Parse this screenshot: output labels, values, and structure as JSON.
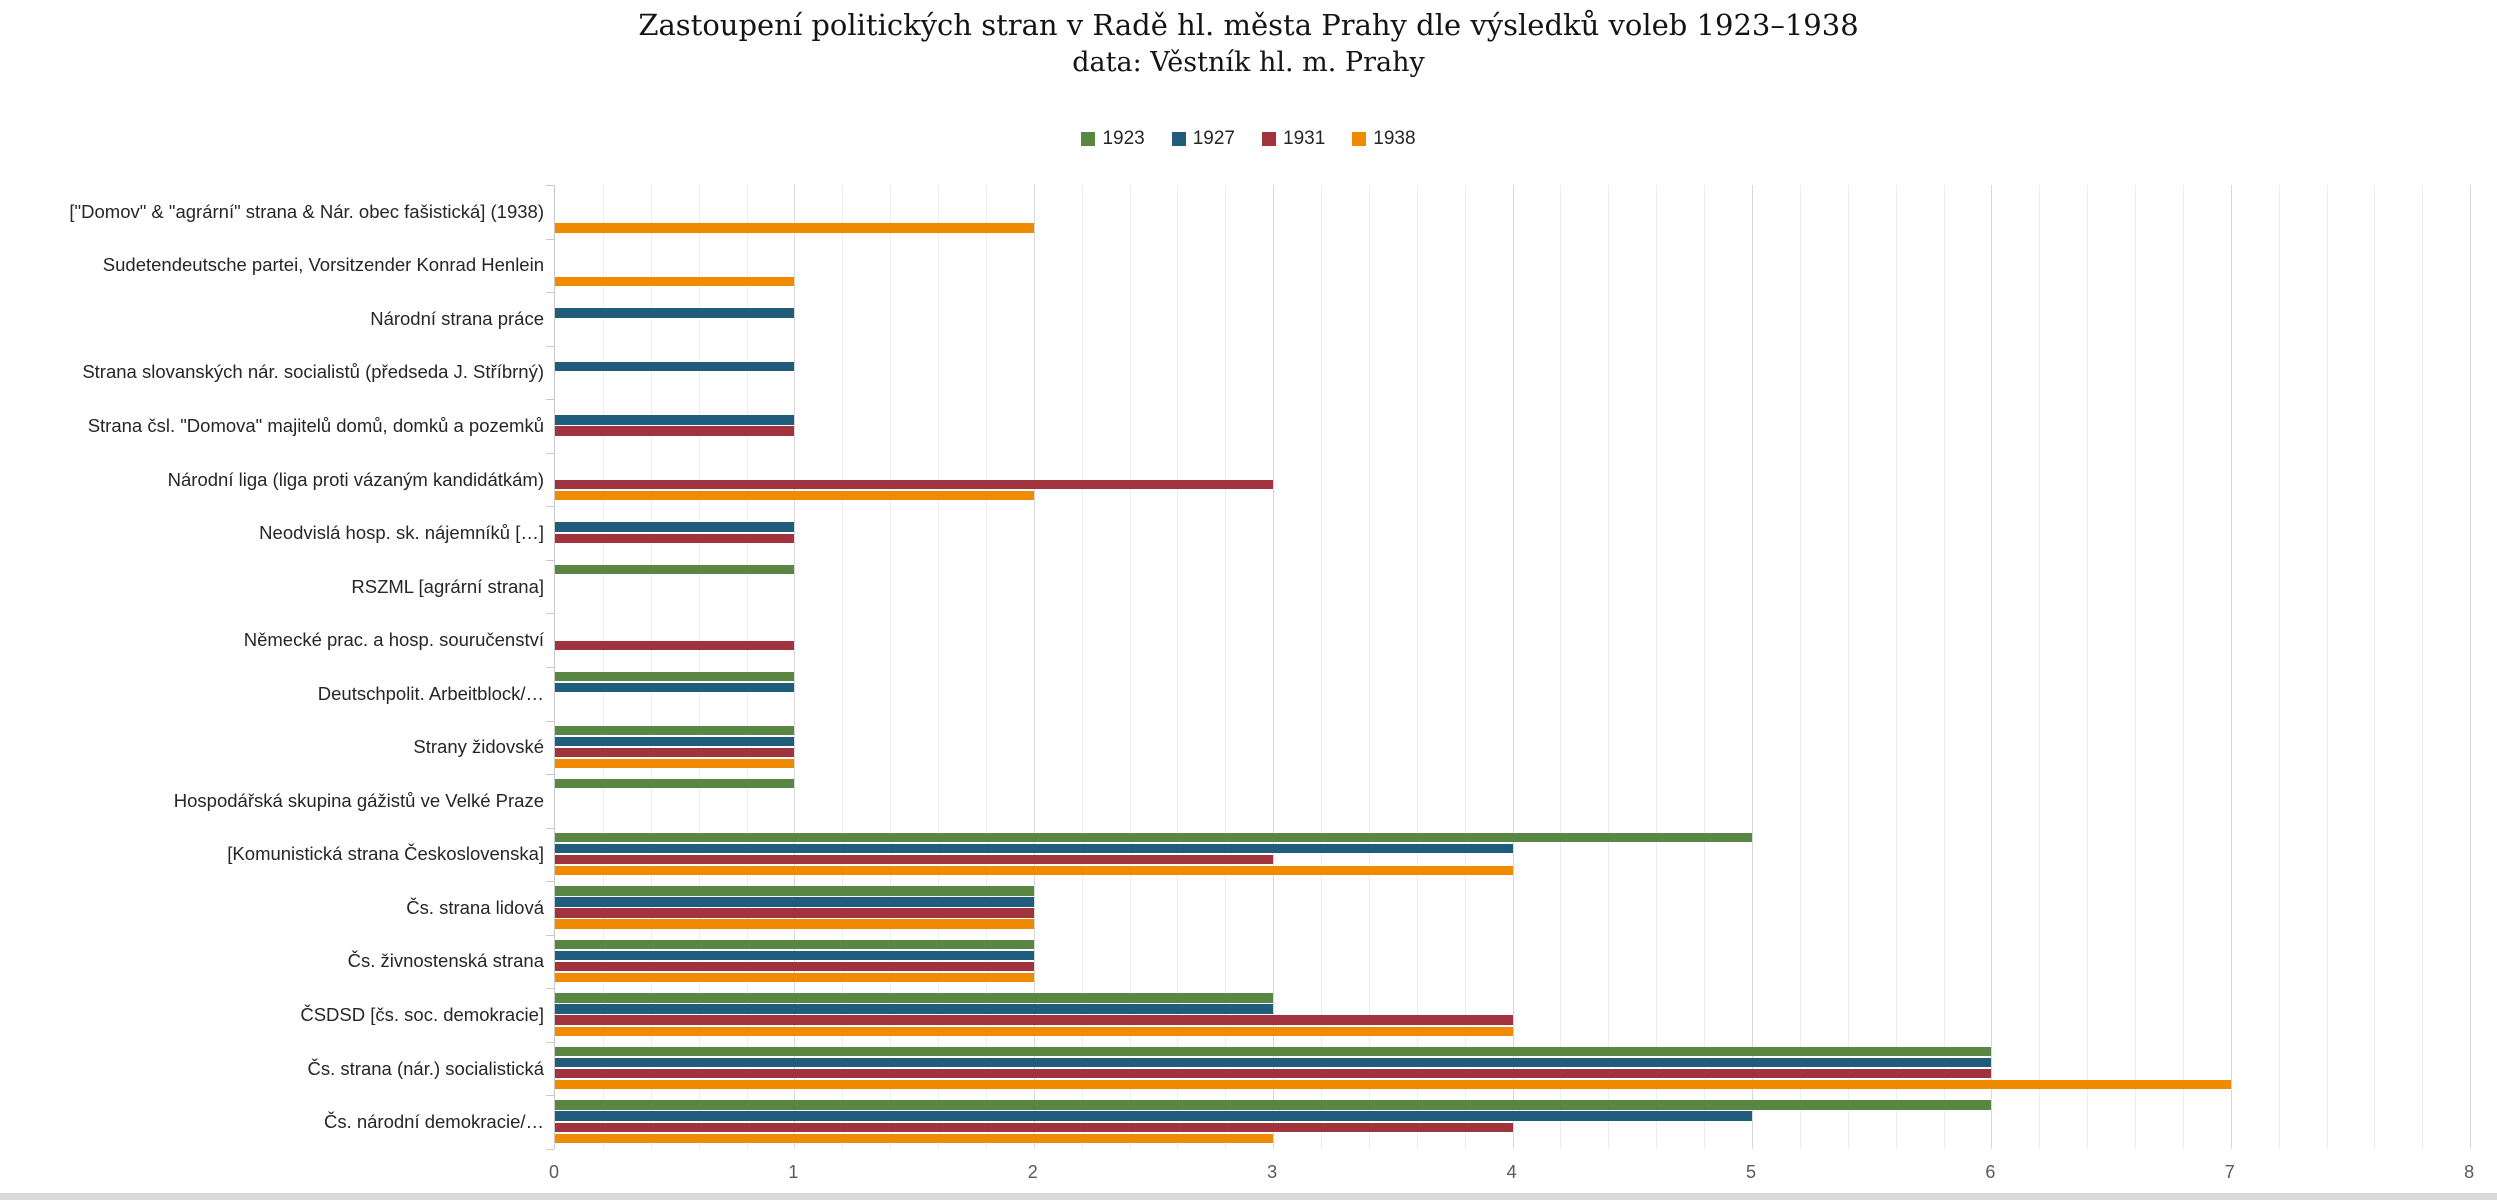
{
  "title": "Zastoupení politických stran v Radě hl. města Prahy dle výsledků voleb 1923–1938",
  "subtitle": "data: Věstník hl. m. Prahy",
  "colors": {
    "series_1923": "#598743",
    "series_1927": "#205C7B",
    "series_1931": "#A0333D",
    "series_1938": "#F08A00",
    "grid_minor": "#ededed",
    "grid_major": "#d8d8d8",
    "axis": "#c9c9c9",
    "tick_label": "#595959",
    "category_label": "#262626",
    "bottom_strip": "#d9d9d9"
  },
  "chart_data": {
    "type": "bar",
    "orientation": "horizontal",
    "title": "Zastoupení politických stran v Radě hl. města Prahy dle výsledků voleb 1923–1938",
    "subtitle": "data: Věstník hl. m. Prahy",
    "xlabel": "",
    "ylabel": "",
    "xlim": [
      0,
      8
    ],
    "x_ticks": [
      0,
      1,
      2,
      3,
      4,
      5,
      6,
      7,
      8
    ],
    "minor_grid_step": 0.2,
    "grid": true,
    "legend_position": "top",
    "legend_entries": [
      "1923",
      "1927",
      "1931",
      "1938"
    ],
    "series": [
      {
        "name": "1923",
        "color": "#598743"
      },
      {
        "name": "1927",
        "color": "#205C7B"
      },
      {
        "name": "1931",
        "color": "#A0333D"
      },
      {
        "name": "1938",
        "color": "#F08A00"
      }
    ],
    "categories": [
      "[\"Domov\" & \"agrární\" strana & Nár. obec fašistická] (1938)",
      "Sudetendeutsche partei, Vorsitzender Konrad Henlein",
      "Národní strana práce",
      "Strana slovanských nár. socialistů (předseda J. Stříbrný)",
      "Strana čsl. \"Domova\" majitelů domů, domků a pozemků",
      "Národní liga (liga proti vázaným kandidátkám)",
      "Neodvislá hosp. sk. nájemníků […]",
      "RSZML [agrární strana]",
      "Německé prac. a hosp. souručenství",
      "Deutschpolit. Arbeitblock/…",
      "Strany židovské",
      "Hospodářská skupina gážistů ve Velké Praze",
      "[Komunistická strana Československa]",
      "Čs. strana lidová",
      "Čs. živnostenská strana",
      "ČSDSD [čs. soc. demokracie]",
      "Čs. strana (nár.) socialistická",
      "Čs. národní demokracie/…"
    ],
    "values": [
      [
        null,
        null,
        null,
        2
      ],
      [
        null,
        null,
        null,
        1
      ],
      [
        null,
        1,
        null,
        null
      ],
      [
        null,
        1,
        null,
        null
      ],
      [
        null,
        1,
        1,
        null
      ],
      [
        null,
        null,
        3,
        2
      ],
      [
        null,
        1,
        1,
        null
      ],
      [
        1,
        null,
        null,
        null
      ],
      [
        null,
        null,
        1,
        null
      ],
      [
        1,
        1,
        null,
        null
      ],
      [
        1,
        1,
        1,
        1
      ],
      [
        1,
        null,
        null,
        null
      ],
      [
        5,
        4,
        3,
        4
      ],
      [
        2,
        2,
        2,
        2
      ],
      [
        2,
        2,
        2,
        2
      ],
      [
        3,
        3,
        4,
        4
      ],
      [
        6,
        6,
        6,
        7
      ],
      [
        6,
        5,
        4,
        3
      ]
    ]
  }
}
